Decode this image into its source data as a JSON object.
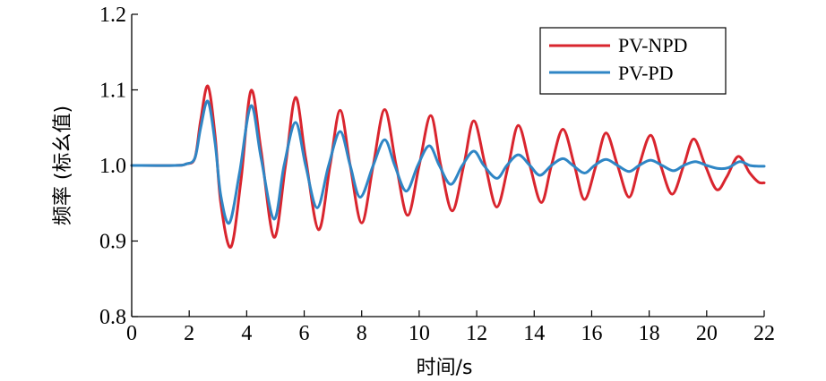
{
  "chart_data": {
    "type": "line",
    "title": "",
    "xlabel": "时间/s",
    "ylabel": "频率 (标幺值)",
    "xlim": [
      0,
      22
    ],
    "ylim": [
      0.8,
      1.2
    ],
    "xticks": [
      0,
      2,
      4,
      6,
      8,
      10,
      12,
      14,
      16,
      18,
      20,
      22
    ],
    "yticks": [
      "0.8",
      "0.9",
      "1.0",
      "1.1",
      "1.2"
    ],
    "grid": false,
    "legend_position": "top-right",
    "colors": {
      "PV-NPD": "#d9252e",
      "PV-PD": "#2f86c5"
    },
    "series": [
      {
        "name": "PV-NPD",
        "x": [
          0,
          1.5,
          1.9,
          2.2,
          2.4,
          2.65,
          2.9,
          3.1,
          3.45,
          3.8,
          4.15,
          4.5,
          4.95,
          5.35,
          5.7,
          6.05,
          6.5,
          6.9,
          7.25,
          7.6,
          8.0,
          8.4,
          8.8,
          9.2,
          9.6,
          10.0,
          10.4,
          10.75,
          11.15,
          11.55,
          11.9,
          12.3,
          12.7,
          13.1,
          13.45,
          13.85,
          14.25,
          14.6,
          15.0,
          15.4,
          15.75,
          16.15,
          16.5,
          16.9,
          17.3,
          17.65,
          18.05,
          18.4,
          18.8,
          19.2,
          19.55,
          19.95,
          20.35,
          20.7,
          21.1,
          21.5,
          21.8,
          22.0
        ],
        "values": [
          1.0,
          1.0,
          1.002,
          1.01,
          1.06,
          1.105,
          1.04,
          0.95,
          0.892,
          0.98,
          1.099,
          1.02,
          0.905,
          1.0,
          1.09,
          1.01,
          0.915,
          1.0,
          1.073,
          1.0,
          0.924,
          1.0,
          1.074,
          1.0,
          0.934,
          1.0,
          1.066,
          1.0,
          0.94,
          1.0,
          1.059,
          1.0,
          0.945,
          1.0,
          1.053,
          1.0,
          0.951,
          1.0,
          1.048,
          1.0,
          0.955,
          1.0,
          1.043,
          1.0,
          0.958,
          1.0,
          1.04,
          1.0,
          0.962,
          1.0,
          1.035,
          1.0,
          0.968,
          0.985,
          1.012,
          0.99,
          0.978,
          0.977
        ]
      },
      {
        "name": "PV-PD",
        "x": [
          0,
          1.5,
          1.9,
          2.2,
          2.4,
          2.65,
          2.9,
          3.1,
          3.4,
          3.75,
          4.15,
          4.5,
          4.95,
          5.3,
          5.7,
          6.05,
          6.45,
          6.85,
          7.25,
          7.6,
          7.95,
          8.4,
          8.8,
          9.15,
          9.55,
          9.95,
          10.35,
          10.7,
          11.1,
          11.5,
          11.9,
          12.25,
          12.7,
          13.05,
          13.45,
          13.85,
          14.2,
          14.6,
          15.0,
          15.35,
          15.75,
          16.1,
          16.5,
          16.9,
          17.3,
          17.65,
          18.05,
          18.45,
          18.85,
          19.2,
          19.6,
          20.0,
          20.4,
          20.75,
          21.15,
          21.5,
          21.8,
          22.0
        ],
        "values": [
          1.0,
          1.0,
          1.002,
          1.01,
          1.05,
          1.085,
          1.03,
          0.96,
          0.924,
          0.99,
          1.079,
          1.01,
          0.929,
          1.0,
          1.057,
          1.0,
          0.944,
          1.0,
          1.045,
          1.0,
          0.958,
          1.0,
          1.034,
          1.0,
          0.966,
          1.0,
          1.026,
          1.0,
          0.975,
          1.0,
          1.019,
          1.0,
          0.983,
          1.0,
          1.014,
          1.0,
          0.987,
          1.0,
          1.009,
          1.0,
          0.99,
          1.0,
          1.008,
          1.0,
          0.992,
          1.0,
          1.007,
          1.0,
          0.993,
          1.0,
          1.005,
          1.0,
          0.996,
          0.997,
          1.005,
          1.0,
          0.999,
          0.999
        ]
      }
    ]
  }
}
